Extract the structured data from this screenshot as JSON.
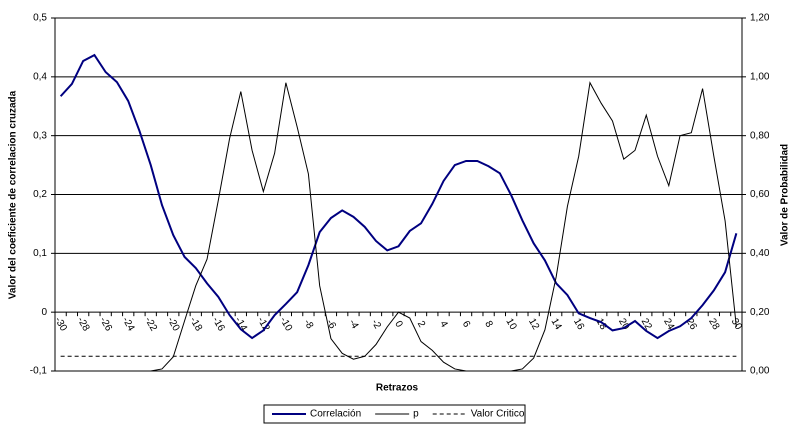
{
  "chart_data": {
    "type": "line",
    "x_label": "Retrazos",
    "y_label": "Valor del coeficiente de correlacion cruzada",
    "y2_label": "Valor de Probabilidad",
    "categories": [
      "-30",
      null,
      "-28",
      null,
      "-26",
      null,
      "-24",
      null,
      "-22",
      null,
      "-20",
      null,
      "-18",
      null,
      "-16",
      null,
      "-14",
      null,
      "-12",
      null,
      "-10",
      null,
      "-8",
      null,
      "-6",
      null,
      "-4",
      null,
      "-2",
      null,
      "0",
      null,
      "2",
      null,
      "4",
      null,
      "6",
      null,
      "8",
      null,
      "10",
      null,
      "12",
      null,
      "14",
      null,
      "16",
      null,
      "18",
      null,
      "20",
      null,
      "22",
      null,
      "24",
      null,
      "26",
      null,
      "28",
      null,
      "30"
    ],
    "ylim": [
      -0.1,
      0.5
    ],
    "yticks": [
      {
        "value": -0.1,
        "label": "-0,1"
      },
      0,
      {
        "value": 0.1,
        "label": "0,1"
      },
      {
        "value": 0.2,
        "label": "0,2"
      },
      {
        "value": 0.3,
        "label": "0,3"
      },
      {
        "value": 0.4,
        "label": "0,4"
      },
      {
        "value": 0.5,
        "label": "0,5"
      }
    ],
    "y2lim": [
      0,
      1.2
    ],
    "y2ticks": [
      {
        "value": 0,
        "label": "0,00"
      },
      {
        "value": 0.2,
        "label": "0,20"
      },
      {
        "value": 0.4,
        "label": "0,40"
      },
      {
        "value": 0.6,
        "label": "0,60"
      },
      {
        "value": 0.8,
        "label": "0,80"
      },
      {
        "value": 1.0,
        "label": "1,00"
      },
      {
        "value": 1.2,
        "label": "1,20"
      }
    ],
    "grid": true,
    "series": [
      {
        "name": "Correlación",
        "color": "#000080",
        "axis": "y",
        "values": [
          0.367,
          0.388,
          0.427,
          0.437,
          0.408,
          0.391,
          0.359,
          0.308,
          0.25,
          0.182,
          0.131,
          0.094,
          0.075,
          0.049,
          0.026,
          -0.005,
          -0.029,
          -0.044,
          -0.031,
          -0.005,
          0.014,
          0.034,
          0.08,
          0.136,
          0.16,
          0.173,
          0.162,
          0.145,
          0.121,
          0.105,
          0.112,
          0.138,
          0.151,
          0.184,
          0.223,
          0.25,
          0.257,
          0.257,
          0.248,
          0.236,
          0.199,
          0.156,
          0.117,
          0.088,
          0.049,
          0.029,
          -0.002,
          -0.01,
          -0.017,
          -0.031,
          -0.027,
          -0.015,
          -0.032,
          -0.044,
          -0.032,
          -0.024,
          -0.01,
          0.012,
          0.037,
          0.068,
          0.134
        ]
      },
      {
        "name": "p",
        "color": "#000000",
        "axis": "y2",
        "values": [
          0,
          0,
          0,
          0,
          0,
          0,
          0,
          0,
          0,
          0.007,
          0.048,
          0.17,
          0.29,
          0.38,
          0.58,
          0.79,
          0.95,
          0.75,
          0.61,
          0.74,
          0.98,
          0.83,
          0.67,
          0.29,
          0.11,
          0.06,
          0.04,
          0.05,
          0.09,
          0.15,
          0.2,
          0.18,
          0.1,
          0.07,
          0.03,
          0.007,
          0,
          0,
          0,
          0,
          0,
          0.007,
          0.044,
          0.14,
          0.32,
          0.56,
          0.73,
          0.98,
          0.91,
          0.85,
          0.72,
          0.75,
          0.87,
          0.73,
          0.63,
          0.8,
          0.81,
          0.96,
          0.73,
          0.51,
          0.15
        ]
      },
      {
        "name": "Valor Critico",
        "color": "#000000",
        "axis": "y2",
        "dashed": true,
        "values": [
          0.05,
          0.05,
          0.05,
          0.05,
          0.05,
          0.05,
          0.05,
          0.05,
          0.05,
          0.05,
          0.05,
          0.05,
          0.05,
          0.05,
          0.05,
          0.05,
          0.05,
          0.05,
          0.05,
          0.05,
          0.05,
          0.05,
          0.05,
          0.05,
          0.05,
          0.05,
          0.05,
          0.05,
          0.05,
          0.05,
          0.05,
          0.05,
          0.05,
          0.05,
          0.05,
          0.05,
          0.05,
          0.05,
          0.05,
          0.05,
          0.05,
          0.05,
          0.05,
          0.05,
          0.05,
          0.05,
          0.05,
          0.05,
          0.05,
          0.05,
          0.05,
          0.05,
          0.05,
          0.05,
          0.05,
          0.05,
          0.05,
          0.05,
          0.05,
          0.05,
          0.05
        ]
      }
    ]
  }
}
